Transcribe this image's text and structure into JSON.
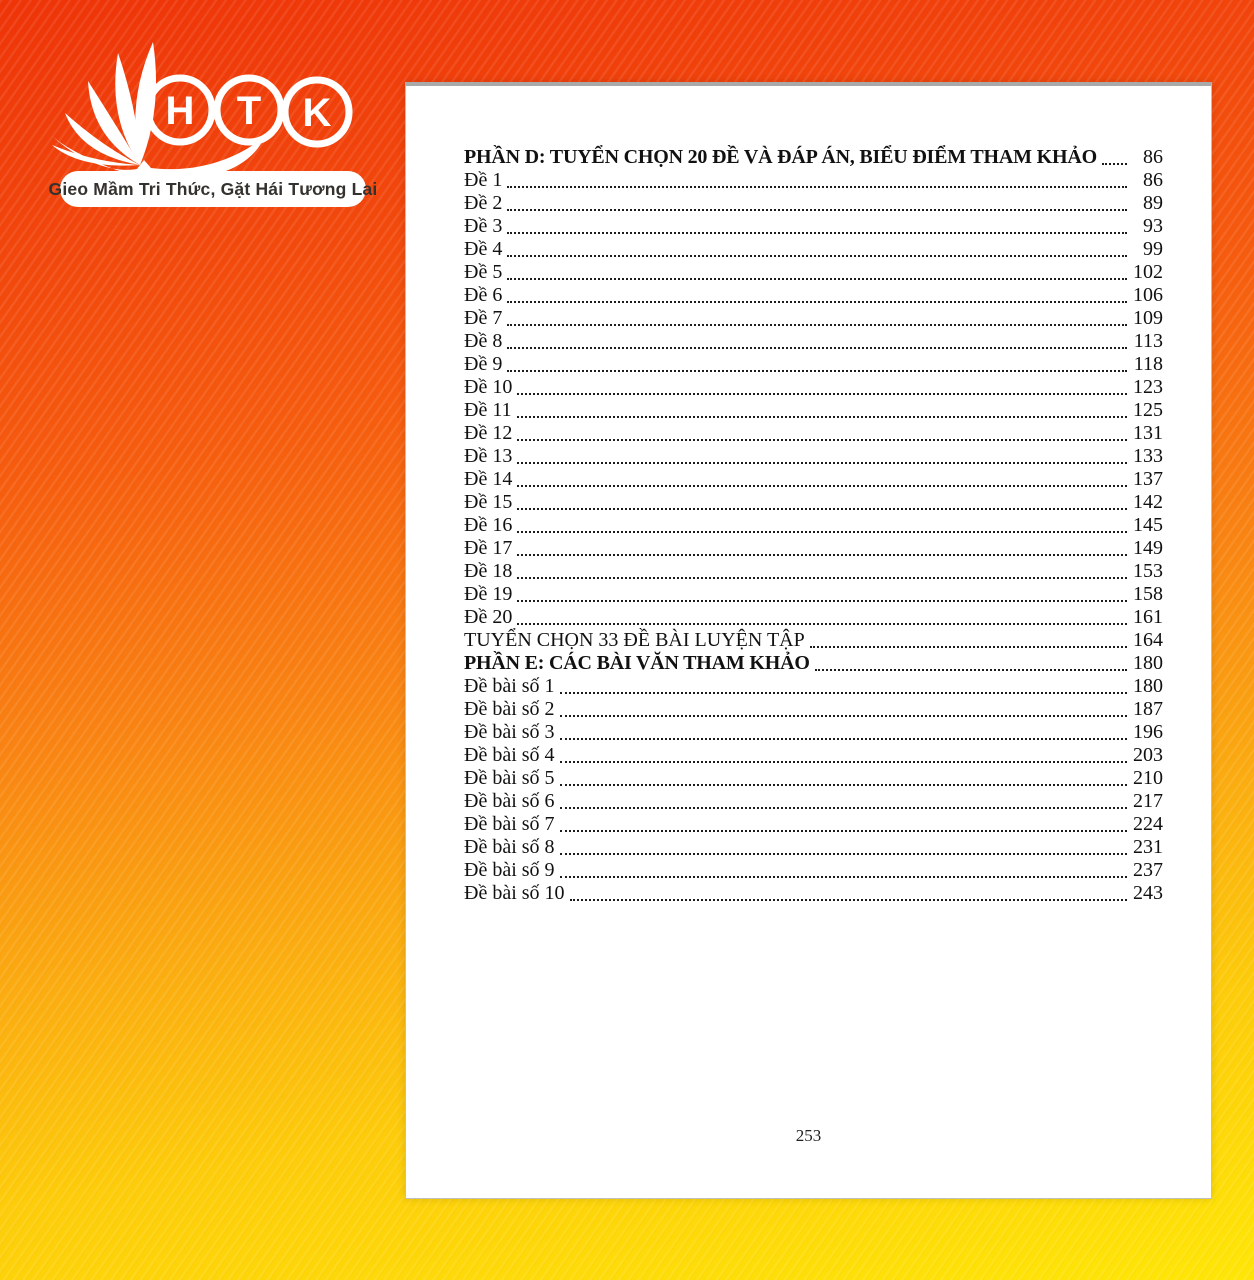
{
  "background": {
    "top_color": "#ef3408",
    "mid_color": "#f98312",
    "bottom_color": "#ffe606"
  },
  "logo": {
    "letters": [
      "H",
      "T",
      "K"
    ],
    "slogan": "Gieo Mầm Tri Thức, Gặt Hái Tương Lai"
  },
  "page": {
    "footer_page_number": "253",
    "toc": [
      {
        "label": "PHẦN D: TUYỂN CHỌN 20 ĐỀ VÀ ĐÁP ÁN, BIỂU ĐIỂM THAM KHẢO",
        "page": "86",
        "bold": true
      },
      {
        "label": "Đề 1",
        "page": "86"
      },
      {
        "label": "Đề 2",
        "page": "89"
      },
      {
        "label": "Đề 3",
        "page": "93"
      },
      {
        "label": "Đề 4",
        "page": "99"
      },
      {
        "label": "Đề 5",
        "page": "102"
      },
      {
        "label": "Đề 6",
        "page": "106"
      },
      {
        "label": "Đề 7",
        "page": "109"
      },
      {
        "label": "Đề 8",
        "page": "113"
      },
      {
        "label": "Đề 9",
        "page": "118"
      },
      {
        "label": "Đề 10",
        "page": "123"
      },
      {
        "label": "Đề 11",
        "page": "125"
      },
      {
        "label": "Đề 12",
        "page": "131"
      },
      {
        "label": "Đề 13",
        "page": "133"
      },
      {
        "label": "Đề 14",
        "page": "137"
      },
      {
        "label": "Đề 15",
        "page": "142"
      },
      {
        "label": "Đề 16",
        "page": "145"
      },
      {
        "label": "Đề 17",
        "page": "149"
      },
      {
        "label": "Đề 18",
        "page": "153"
      },
      {
        "label": "Đề 19",
        "page": "158"
      },
      {
        "label": "Đề 20",
        "page": "161"
      },
      {
        "label": "TUYỂN CHỌN 33 ĐỀ BÀI LUYỆN TẬP",
        "page": "164"
      },
      {
        "label": "PHẦN E: CÁC BÀI VĂN THAM KHẢO",
        "page": "180",
        "bold": true
      },
      {
        "label": "Đề bài số 1",
        "page": "180"
      },
      {
        "label": "Đề bài số 2",
        "page": "187"
      },
      {
        "label": "Đề bài số 3",
        "page": "196"
      },
      {
        "label": "Đề bài số 4",
        "page": "203"
      },
      {
        "label": "Đề bài số 5",
        "page": "210"
      },
      {
        "label": "Đề bài số 6",
        "page": "217"
      },
      {
        "label": "Đề bài số 7",
        "page": "224"
      },
      {
        "label": "Đề bài số 8",
        "page": "231"
      },
      {
        "label": "Đề bài số 9",
        "page": "237"
      },
      {
        "label": "Đề bài số 10",
        "page": "243"
      }
    ]
  }
}
